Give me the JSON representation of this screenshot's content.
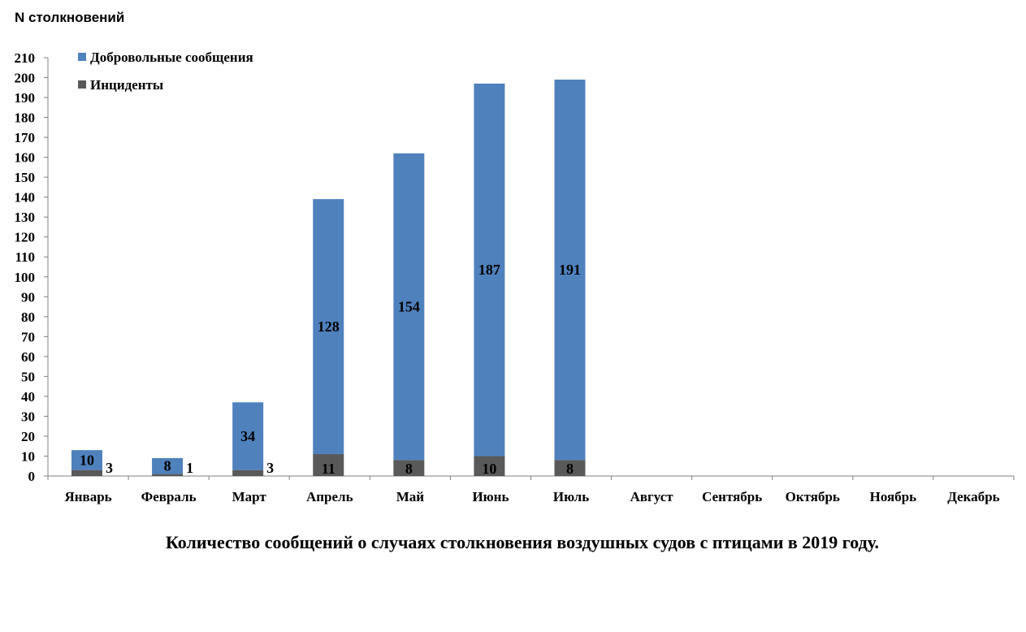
{
  "chart_data": {
    "type": "bar",
    "stacked": true,
    "ylabel": "N столкновений",
    "caption": "Количество сообщений о случаях столкновения воздушных судов с птицами в 2019 году.",
    "ylim": [
      0,
      210
    ],
    "ytick_step": 10,
    "categories": [
      "Январь",
      "Февраль",
      "Март",
      "Апрель",
      "Май",
      "Июнь",
      "Июль",
      "Август",
      "Сентябрь",
      "Октябрь",
      "Ноябрь",
      "Декабрь"
    ],
    "series": [
      {
        "name": "Инциденты",
        "color": "#595959",
        "values": [
          3,
          1,
          3,
          11,
          8,
          10,
          8,
          null,
          null,
          null,
          null,
          null
        ],
        "labels": [
          "3",
          "1",
          "3",
          "11",
          "8",
          "10",
          "8",
          "",
          "",
          "",
          "",
          ""
        ]
      },
      {
        "name": "Добровольные сообщения",
        "color": "#4f81bd",
        "values": [
          10,
          8,
          34,
          128,
          154,
          187,
          191,
          null,
          null,
          null,
          null,
          null
        ],
        "labels": [
          "10",
          "8",
          "34",
          "128",
          "154",
          "187",
          "191",
          "",
          "",
          "",
          "",
          ""
        ]
      }
    ],
    "legend_order": [
      "Добровольные сообщения",
      "Инциденты"
    ],
    "legend_position": "top-left",
    "grid": false
  }
}
